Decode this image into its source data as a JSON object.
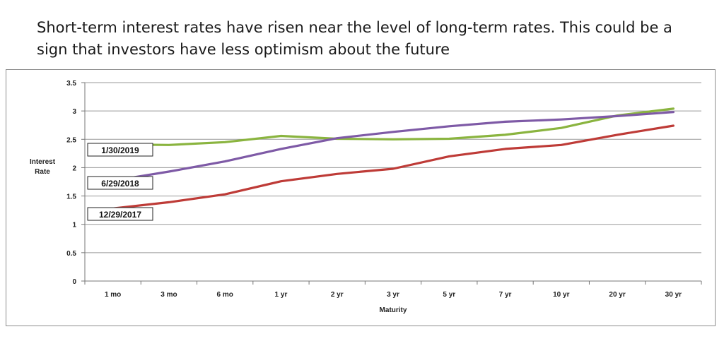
{
  "headline": "Short-term interest rates have risen near the level of long-term rates.  This could be a sign that investors have less optimism about the future",
  "chart_data": {
    "type": "line",
    "title": "",
    "xlabel": "Maturity",
    "ylabel": "Interest Rate",
    "ylim": [
      0,
      3.5
    ],
    "yticks": [
      0,
      0.5,
      1,
      1.5,
      2,
      2.5,
      3,
      3.5
    ],
    "ytick_labels": [
      "0",
      "0.5",
      "1",
      "1.5",
      "2",
      "2.5",
      "3",
      "3.5"
    ],
    "grid": "horizontal",
    "categories": [
      "1 mo",
      "3 mo",
      "6 mo",
      "1 yr",
      "2 yr",
      "3 yr",
      "5 yr",
      "7 yr",
      "10 yr",
      "20 yr",
      "30 yr"
    ],
    "series": [
      {
        "name": "1/30/2019",
        "color": "#8ab43f",
        "values": [
          2.41,
          2.4,
          2.45,
          2.56,
          2.51,
          2.5,
          2.51,
          2.58,
          2.7,
          2.92,
          3.04
        ]
      },
      {
        "name": "6/29/2018",
        "color": "#7e5aa6",
        "values": [
          1.77,
          1.93,
          2.11,
          2.33,
          2.52,
          2.63,
          2.73,
          2.81,
          2.85,
          2.91,
          2.98
        ]
      },
      {
        "name": "12/29/2017",
        "color": "#be3b37",
        "values": [
          1.28,
          1.39,
          1.53,
          1.76,
          1.89,
          1.98,
          2.2,
          2.33,
          2.4,
          2.58,
          2.74
        ]
      }
    ]
  }
}
